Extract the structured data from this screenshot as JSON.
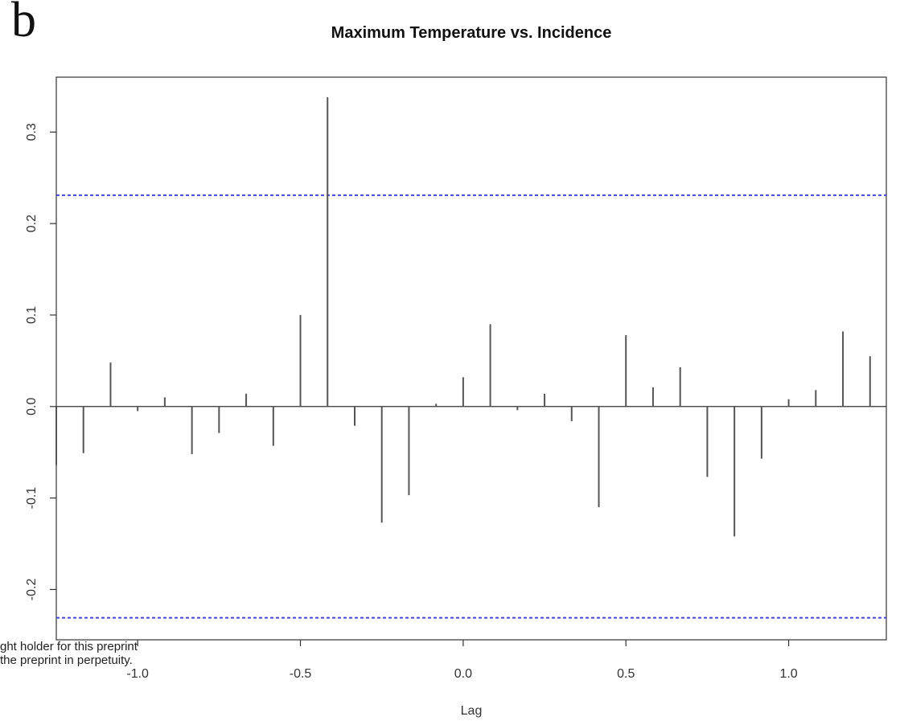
{
  "panel_label": "b",
  "watermark_lines": [
    "ght holder for this preprint",
    "the preprint in perpetuity."
  ],
  "colors": {
    "bars": "#555555",
    "confidence_lines": "#4444dd",
    "axis": "#333333"
  },
  "chart_data": {
    "type": "bar",
    "title": "Maximum Temperature vs. Incidence",
    "xlabel": "Lag",
    "ylabel": "",
    "xlim": [
      -1.25,
      1.3
    ],
    "ylim": [
      -0.255,
      0.36
    ],
    "xticks": [
      {
        "value": -1.0,
        "label": "-1.0"
      },
      {
        "value": -0.5,
        "label": "-0.5"
      },
      {
        "value": 0.0,
        "label": "0.0"
      },
      {
        "value": 0.5,
        "label": "0.5"
      },
      {
        "value": 1.0,
        "label": "1.0"
      }
    ],
    "yticks": [
      {
        "value": -0.2,
        "label": "-0.2"
      },
      {
        "value": -0.1,
        "label": "-0.1"
      },
      {
        "value": 0.0,
        "label": "0.0"
      },
      {
        "value": 0.1,
        "label": "0.1"
      },
      {
        "value": 0.2,
        "label": "0.2"
      },
      {
        "value": 0.3,
        "label": "0.3"
      }
    ],
    "confidence_bounds": [
      0.231,
      -0.231
    ],
    "x": [
      -1.25,
      -1.1667,
      -1.0833,
      -1.0,
      -0.9167,
      -0.8333,
      -0.75,
      -0.6667,
      -0.5833,
      -0.5,
      -0.4167,
      -0.3333,
      -0.25,
      -0.1667,
      -0.0833,
      0.0,
      0.0833,
      0.1667,
      0.25,
      0.3333,
      0.4167,
      0.5,
      0.5833,
      0.6667,
      0.75,
      0.8333,
      0.9167,
      1.0,
      1.0833,
      1.1667,
      1.25
    ],
    "values": [
      -0.064,
      -0.051,
      0.048,
      -0.005,
      0.01,
      -0.052,
      -0.029,
      0.014,
      -0.043,
      0.1,
      0.338,
      -0.021,
      -0.127,
      -0.097,
      0.003,
      0.032,
      0.09,
      -0.004,
      0.014,
      -0.016,
      -0.11,
      0.078,
      0.021,
      0.043,
      -0.077,
      -0.142,
      -0.057,
      0.008,
      0.018,
      0.082,
      0.055
    ],
    "grid": false,
    "legend": "none"
  }
}
